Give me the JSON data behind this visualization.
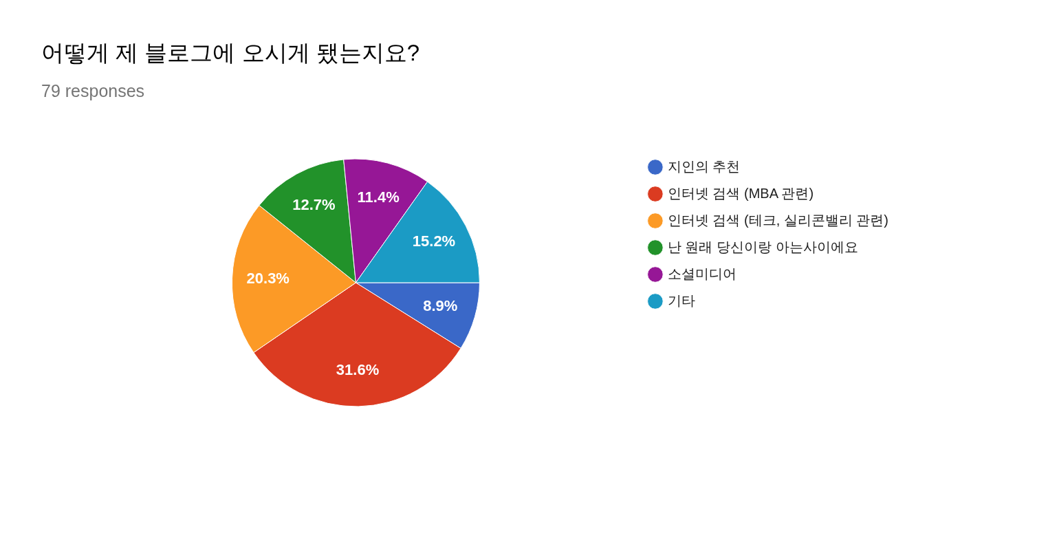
{
  "chart_data": {
    "type": "pie",
    "title": "어떻게 제 블로그에 오시게 됐는지요?",
    "subtitle": "79 responses",
    "categories": [
      "지인의 추천",
      "인터넷 검색 (MBA 관련)",
      "인터넷 검색 (테크, 실리콘밸리 관련)",
      "난 원래 당신이랑 아는사이에요",
      "소셜미디어",
      "기타"
    ],
    "values": [
      8.9,
      31.6,
      20.3,
      12.7,
      11.4,
      15.2
    ],
    "colors": [
      "#3a68c8",
      "#db3b21",
      "#fc9a26",
      "#22922a",
      "#961796",
      "#1b9bc5"
    ],
    "value_labels": [
      "8.9%",
      "31.6%",
      "20.3%",
      "12.7%",
      "11.4%",
      "15.2%"
    ],
    "legend": "right"
  }
}
